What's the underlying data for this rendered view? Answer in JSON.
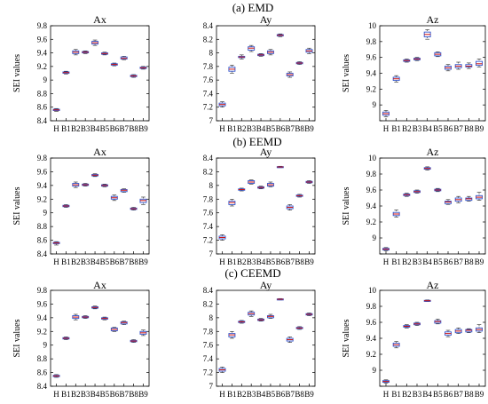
{
  "figure": {
    "row_titles": [
      "(a) EMD",
      "(b) EEMD",
      "(c) CEEMD"
    ]
  },
  "chart_data": [
    {
      "type": "box",
      "row": 0,
      "col": 0,
      "title": "Ax",
      "ylabel": "SEI values",
      "categories": [
        "H",
        "B1",
        "B2",
        "B3",
        "B4",
        "B5",
        "B6",
        "B7",
        "B8",
        "B9"
      ],
      "ylim": [
        8.4,
        9.8
      ],
      "yticks": [
        8.4,
        8.6,
        8.8,
        9,
        9.2,
        9.4,
        9.6,
        9.8
      ],
      "ytick_labels": [
        "8.4",
        "8.6",
        "8.8",
        "9",
        "9.2",
        "9.4",
        "9.6",
        "9.8"
      ],
      "boxes": [
        [
          8.54,
          8.55,
          8.56,
          8.57,
          8.58
        ],
        [
          9.09,
          9.1,
          9.11,
          9.12,
          9.13
        ],
        [
          9.37,
          9.39,
          9.41,
          9.43,
          9.45
        ],
        [
          9.39,
          9.4,
          9.41,
          9.42,
          9.43
        ],
        [
          9.51,
          9.53,
          9.55,
          9.57,
          9.59
        ],
        [
          9.37,
          9.38,
          9.39,
          9.4,
          9.41
        ],
        [
          9.21,
          9.22,
          9.23,
          9.24,
          9.25
        ],
        [
          9.3,
          9.31,
          9.32,
          9.34,
          9.35
        ],
        [
          9.04,
          9.05,
          9.06,
          9.07,
          9.08
        ],
        [
          9.16,
          9.17,
          9.18,
          9.19,
          9.2
        ]
      ]
    },
    {
      "type": "box",
      "row": 0,
      "col": 1,
      "title": "Ay",
      "ylabel": "",
      "categories": [
        "H",
        "B1",
        "B2",
        "B3",
        "B4",
        "B5",
        "B6",
        "B7",
        "B8",
        "B9"
      ],
      "ylim": [
        7.0,
        8.4
      ],
      "yticks": [
        7,
        7.2,
        7.4,
        7.6,
        7.8,
        8,
        8.2,
        8.4
      ],
      "ytick_labels": [
        "7",
        "7.2",
        "7.4",
        "7.6",
        "7.8",
        "8",
        "8.2",
        "8.4"
      ],
      "boxes": [
        [
          7.2,
          7.22,
          7.24,
          7.26,
          7.28
        ],
        [
          7.7,
          7.73,
          7.76,
          7.79,
          7.82
        ],
        [
          7.91,
          7.93,
          7.94,
          7.95,
          7.97
        ],
        [
          8.02,
          8.04,
          8.07,
          8.09,
          8.11
        ],
        [
          7.95,
          7.96,
          7.97,
          7.98,
          7.99
        ],
        [
          7.97,
          7.99,
          8.01,
          8.03,
          8.05
        ],
        [
          8.24,
          8.25,
          8.26,
          8.27,
          8.28
        ],
        [
          7.64,
          7.66,
          7.68,
          7.7,
          7.72
        ],
        [
          7.83,
          7.84,
          7.85,
          7.86,
          7.87
        ],
        [
          7.99,
          8.01,
          8.03,
          8.05,
          8.07
        ]
      ]
    },
    {
      "type": "box",
      "row": 0,
      "col": 2,
      "title": "Az",
      "ylabel": "SEI values",
      "categories": [
        "H",
        "B1",
        "B2",
        "B3",
        "B4",
        "B5",
        "B6",
        "B7",
        "B8",
        "B9"
      ],
      "ylim": [
        8.8,
        10.0
      ],
      "yticks": [
        8.8,
        9,
        9.2,
        9.4,
        9.6,
        9.8,
        10
      ],
      "ytick_labels": [
        "",
        "9",
        "9.2",
        "9.4",
        "9.6",
        "9.8",
        "10"
      ],
      "boxes": [
        [
          8.85,
          8.87,
          8.89,
          8.91,
          8.93
        ],
        [
          9.29,
          9.31,
          9.33,
          9.35,
          9.37
        ],
        [
          9.54,
          9.55,
          9.56,
          9.57,
          9.58
        ],
        [
          9.56,
          9.57,
          9.58,
          9.59,
          9.6
        ],
        [
          9.83,
          9.86,
          9.89,
          9.92,
          9.95
        ],
        [
          9.61,
          9.62,
          9.64,
          9.66,
          9.67
        ],
        [
          9.43,
          9.45,
          9.47,
          9.49,
          9.51
        ],
        [
          9.45,
          9.47,
          9.49,
          9.51,
          9.54
        ],
        [
          9.46,
          9.48,
          9.49,
          9.51,
          9.53
        ],
        [
          9.48,
          9.5,
          9.52,
          9.55,
          9.58
        ]
      ]
    },
    {
      "type": "box",
      "row": 1,
      "col": 0,
      "title": "Ax",
      "ylabel": "SEI values",
      "categories": [
        "H",
        "B1",
        "B2",
        "B3",
        "B4",
        "B5",
        "B6",
        "B7",
        "B8",
        "B9"
      ],
      "ylim": [
        8.4,
        9.8
      ],
      "yticks": [
        8.4,
        8.6,
        8.8,
        9,
        9.2,
        9.4,
        9.6,
        9.8
      ],
      "ytick_labels": [
        "8.4",
        "8.6",
        "8.8",
        "9",
        "9.2",
        "9.4",
        "9.6",
        "9.8"
      ],
      "boxes": [
        [
          8.53,
          8.55,
          8.56,
          8.57,
          8.58
        ],
        [
          9.08,
          9.09,
          9.1,
          9.11,
          9.12
        ],
        [
          9.37,
          9.39,
          9.41,
          9.43,
          9.45
        ],
        [
          9.39,
          9.4,
          9.41,
          9.42,
          9.43
        ],
        [
          9.53,
          9.54,
          9.55,
          9.56,
          9.57
        ],
        [
          9.38,
          9.39,
          9.4,
          9.41,
          9.42
        ],
        [
          9.18,
          9.2,
          9.22,
          9.24,
          9.26
        ],
        [
          9.3,
          9.31,
          9.33,
          9.34,
          9.35
        ],
        [
          9.04,
          9.05,
          9.06,
          9.07,
          9.08
        ],
        [
          9.12,
          9.15,
          9.18,
          9.2,
          9.23
        ]
      ]
    },
    {
      "type": "box",
      "row": 1,
      "col": 1,
      "title": "Ay",
      "ylabel": "",
      "categories": [
        "H",
        "B1",
        "B2",
        "B3",
        "B4",
        "B5",
        "B6",
        "B7",
        "B8",
        "B9"
      ],
      "ylim": [
        7.0,
        8.4
      ],
      "yticks": [
        7,
        7.2,
        7.4,
        7.6,
        7.8,
        8,
        8.2,
        8.4
      ],
      "ytick_labels": [
        "7",
        "7.2",
        "7.4",
        "7.6",
        "7.8",
        "8",
        "8.2",
        "8.4"
      ],
      "boxes": [
        [
          7.2,
          7.22,
          7.24,
          7.26,
          7.28
        ],
        [
          7.7,
          7.72,
          7.75,
          7.77,
          7.8
        ],
        [
          7.92,
          7.93,
          7.94,
          7.95,
          7.96
        ],
        [
          8.02,
          8.03,
          8.05,
          8.07,
          8.08
        ],
        [
          7.95,
          7.96,
          7.97,
          7.98,
          7.99
        ],
        [
          7.98,
          7.99,
          8.01,
          8.03,
          8.05
        ],
        [
          8.26,
          8.265,
          8.27,
          8.275,
          8.28
        ],
        [
          7.64,
          7.66,
          7.68,
          7.7,
          7.72
        ],
        [
          7.83,
          7.84,
          7.85,
          7.86,
          7.87
        ],
        [
          8.03,
          8.04,
          8.05,
          8.06,
          8.07
        ]
      ]
    },
    {
      "type": "box",
      "row": 1,
      "col": 2,
      "title": "Az",
      "ylabel": "SEI values",
      "categories": [
        "H",
        "B1",
        "B2",
        "B3",
        "B4",
        "B5",
        "B6",
        "B7",
        "B8",
        "B9"
      ],
      "ylim": [
        8.8,
        10.0
      ],
      "yticks": [
        8.8,
        9,
        9.2,
        9.4,
        9.6,
        9.8,
        10
      ],
      "ytick_labels": [
        "",
        "9",
        "9.2",
        "9.4",
        "9.6",
        "9.8",
        "10"
      ],
      "boxes": [
        [
          8.84,
          8.85,
          8.86,
          8.87,
          8.88
        ],
        [
          9.26,
          9.28,
          9.3,
          9.32,
          9.35
        ],
        [
          9.52,
          9.53,
          9.54,
          9.55,
          9.56
        ],
        [
          9.56,
          9.57,
          9.58,
          9.59,
          9.6
        ],
        [
          9.85,
          9.86,
          9.87,
          9.88,
          9.89
        ],
        [
          9.58,
          9.59,
          9.6,
          9.61,
          9.62
        ],
        [
          9.42,
          9.43,
          9.45,
          9.46,
          9.48
        ],
        [
          9.44,
          9.46,
          9.48,
          9.5,
          9.52
        ],
        [
          9.46,
          9.47,
          9.49,
          9.5,
          9.52
        ],
        [
          9.47,
          9.49,
          9.51,
          9.53,
          9.57
        ]
      ]
    },
    {
      "type": "box",
      "row": 2,
      "col": 0,
      "title": "Ax",
      "ylabel": "SEI values",
      "categories": [
        "H",
        "B1",
        "B2",
        "B3",
        "B4",
        "B5",
        "B6",
        "B7",
        "B8",
        "B9"
      ],
      "ylim": [
        8.4,
        9.8
      ],
      "yticks": [
        8.4,
        8.6,
        8.8,
        9,
        9.2,
        9.4,
        9.6,
        9.8
      ],
      "ytick_labels": [
        "8.4",
        "8.6",
        "8.8",
        "9",
        "9.2",
        "9.4",
        "9.6",
        "9.8"
      ],
      "boxes": [
        [
          8.53,
          8.54,
          8.55,
          8.56,
          8.57
        ],
        [
          9.08,
          9.09,
          9.1,
          9.11,
          9.12
        ],
        [
          9.37,
          9.39,
          9.41,
          9.43,
          9.45
        ],
        [
          9.39,
          9.4,
          9.41,
          9.42,
          9.43
        ],
        [
          9.53,
          9.54,
          9.55,
          9.56,
          9.57
        ],
        [
          9.37,
          9.38,
          9.39,
          9.4,
          9.41
        ],
        [
          9.2,
          9.21,
          9.23,
          9.25,
          9.26
        ],
        [
          9.3,
          9.31,
          9.33,
          9.34,
          9.35
        ],
        [
          9.04,
          9.05,
          9.06,
          9.07,
          9.08
        ],
        [
          9.14,
          9.16,
          9.18,
          9.2,
          9.22
        ]
      ]
    },
    {
      "type": "box",
      "row": 2,
      "col": 1,
      "title": "Ay",
      "ylabel": "",
      "categories": [
        "H",
        "B1",
        "B2",
        "B3",
        "B4",
        "B5",
        "B6",
        "B7",
        "B8",
        "B9"
      ],
      "ylim": [
        7.0,
        8.4
      ],
      "yticks": [
        7,
        7.2,
        7.4,
        7.6,
        7.8,
        8,
        8.2,
        8.4
      ],
      "ytick_labels": [
        "7",
        "7.2",
        "7.4",
        "7.6",
        "7.8",
        "8",
        "8.2",
        "8.4"
      ],
      "boxes": [
        [
          7.2,
          7.22,
          7.24,
          7.26,
          7.28
        ],
        [
          7.7,
          7.72,
          7.75,
          7.77,
          7.8
        ],
        [
          7.92,
          7.93,
          7.94,
          7.95,
          7.96
        ],
        [
          8.02,
          8.04,
          8.06,
          8.08,
          8.1
        ],
        [
          7.95,
          7.96,
          7.97,
          7.98,
          7.99
        ],
        [
          7.99,
          8.0,
          8.02,
          8.03,
          8.05
        ],
        [
          8.26,
          8.265,
          8.27,
          8.275,
          8.28
        ],
        [
          7.64,
          7.66,
          7.68,
          7.7,
          7.72
        ],
        [
          7.83,
          7.84,
          7.85,
          7.86,
          7.87
        ],
        [
          8.03,
          8.04,
          8.05,
          8.06,
          8.07
        ]
      ]
    },
    {
      "type": "box",
      "row": 2,
      "col": 2,
      "title": "Az",
      "ylabel": "SEI values",
      "categories": [
        "H",
        "B1",
        "B2",
        "B3",
        "B4",
        "B5",
        "B6",
        "B7",
        "B8",
        "B9"
      ],
      "ylim": [
        8.8,
        10.0
      ],
      "yticks": [
        8.8,
        9,
        9.2,
        9.4,
        9.6,
        9.8,
        10
      ],
      "ytick_labels": [
        "",
        "9",
        "9.2",
        "9.4",
        "9.6",
        "9.8",
        "10"
      ],
      "boxes": [
        [
          8.84,
          8.85,
          8.86,
          8.87,
          8.88
        ],
        [
          9.28,
          9.3,
          9.32,
          9.34,
          9.36
        ],
        [
          9.53,
          9.54,
          9.55,
          9.56,
          9.57
        ],
        [
          9.56,
          9.57,
          9.58,
          9.59,
          9.6
        ],
        [
          9.86,
          9.865,
          9.87,
          9.875,
          9.88
        ],
        [
          9.58,
          9.59,
          9.61,
          9.62,
          9.64
        ],
        [
          9.42,
          9.44,
          9.46,
          9.48,
          9.5
        ],
        [
          9.46,
          9.47,
          9.49,
          9.51,
          9.53
        ],
        [
          9.47,
          9.48,
          9.5,
          9.51,
          9.52
        ],
        [
          9.47,
          9.49,
          9.51,
          9.53,
          9.57
        ]
      ]
    }
  ],
  "colors": {
    "box": "#3355cc",
    "median": "#cc1111",
    "whisker": "#222222",
    "axis": "#000000"
  }
}
